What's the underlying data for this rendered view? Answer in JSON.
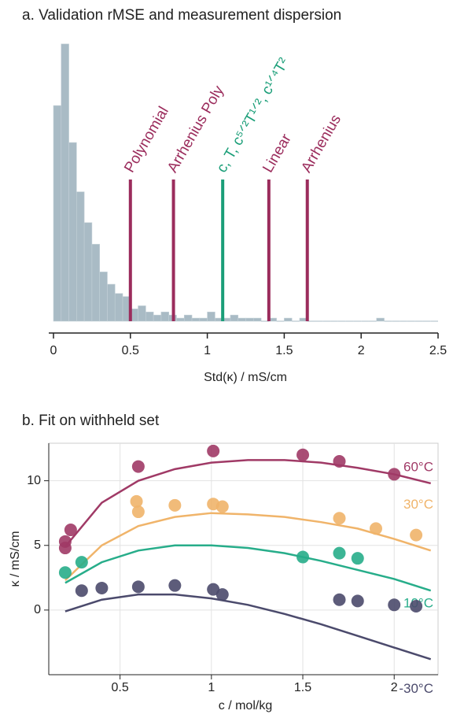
{
  "chart_data": [
    {
      "type": "histogram",
      "title": "a. Validation rMSE and measurement dispersion",
      "x_label": "Std(κ) / mS/cm",
      "bins": [
        0,
        0.05,
        0.1,
        0.15,
        0.2,
        0.25,
        0.3,
        0.35,
        0.4,
        0.45,
        0.5,
        0.55,
        0.6,
        0.65,
        0.7,
        0.75,
        0.8,
        0.85,
        0.9,
        0.95,
        1,
        1.05,
        1.1,
        1.15,
        1.2,
        1.25,
        1.3,
        1.35,
        1.4,
        1.45,
        1.5,
        1.55,
        1.6,
        1.65,
        1.7,
        1.75,
        1.8,
        1.85,
        1.9,
        1.95,
        2,
        2.05,
        2.1,
        2.15,
        2.2,
        2.25,
        2.3,
        2.35,
        2.4,
        2.45,
        2.5
      ],
      "counts": [
        70,
        90,
        58,
        42,
        32,
        25,
        16,
        12,
        9,
        8,
        4,
        5,
        3,
        2,
        3,
        2,
        1,
        2,
        1,
        1,
        3,
        1,
        1,
        2,
        1,
        1,
        1,
        0,
        1,
        0,
        1,
        0,
        1,
        0,
        0,
        0,
        0,
        0,
        0,
        0,
        0,
        0,
        1,
        0,
        0,
        0,
        0,
        0,
        0,
        0
      ],
      "color": "#a9bbc5",
      "xlim": [
        0,
        2.5
      ],
      "xticks": [
        0,
        0.5,
        1,
        1.5,
        2,
        2.5
      ],
      "ylim": [
        0,
        92
      ],
      "markers": [
        {
          "label": "Polynomial",
          "value": 0.5,
          "color": "#9b2c5c"
        },
        {
          "label": "Arrhenius Poly",
          "value": 0.78,
          "color": "#9b2c5c"
        },
        {
          "label": "c, T, c⁵ᐟ²T¹ᐟ², c¹ᐟ⁴T²",
          "value": 1.1,
          "color": "#1a9e78"
        },
        {
          "label": "Linear",
          "value": 1.4,
          "color": "#9b2c5c"
        },
        {
          "label": "Arrhenius",
          "value": 1.65,
          "color": "#9b2c5c"
        }
      ]
    },
    {
      "type": "scatter",
      "title": "b. Fit on withheld set",
      "x_label": "c / mol/kg",
      "y_label": "κ / mS/cm",
      "xlim": [
        0.11,
        2.24
      ],
      "xticks": [
        0.5,
        1,
        1.5,
        2
      ],
      "ylim": [
        -5,
        12.9
      ],
      "yticks": [
        0,
        5,
        10
      ],
      "grid": true,
      "fit_x": [
        0.2,
        0.4,
        0.6,
        0.8,
        1.0,
        1.2,
        1.4,
        1.6,
        1.8,
        2.0,
        2.2
      ],
      "series": [
        {
          "name": "60°C",
          "color": "#a03a66",
          "x": [
            0.2,
            0.2,
            0.23,
            0.6,
            1.01,
            1.5,
            1.7,
            2.0
          ],
          "values": [
            4.8,
            5.3,
            6.2,
            11.1,
            12.3,
            12.0,
            11.5,
            10.5
          ],
          "fit_values": [
            4.9,
            8.3,
            10.0,
            10.9,
            11.4,
            11.6,
            11.6,
            11.4,
            11.0,
            10.5,
            9.8
          ]
        },
        {
          "name": "30°C",
          "color": "#f0b46a",
          "x": [
            0.59,
            0.6,
            0.8,
            1.01,
            1.06,
            1.7,
            1.9,
            2.12
          ],
          "values": [
            8.4,
            7.6,
            8.1,
            8.2,
            8.0,
            7.1,
            6.3,
            5.8
          ],
          "fit_values": [
            2.3,
            5.0,
            6.5,
            7.2,
            7.5,
            7.4,
            7.2,
            6.8,
            6.3,
            5.5,
            4.6
          ]
        },
        {
          "name": "10°C",
          "color": "#27ad8a",
          "x": [
            0.2,
            0.29,
            1.5,
            1.7,
            1.8
          ],
          "values": [
            2.9,
            3.7,
            4.1,
            4.4,
            4.0
          ],
          "fit_values": [
            2.1,
            3.7,
            4.6,
            5.0,
            5.0,
            4.8,
            4.4,
            3.8,
            3.1,
            2.4,
            1.5
          ]
        },
        {
          "name": "-30°C",
          "color": "#4b4a6c",
          "x": [
            0.29,
            0.4,
            0.6,
            0.8,
            1.01,
            1.06,
            1.7,
            1.8,
            2.0,
            2.12
          ],
          "values": [
            1.5,
            1.7,
            1.8,
            1.9,
            1.6,
            1.2,
            0.8,
            0.7,
            0.4,
            0.3
          ],
          "fit_values": [
            -0.1,
            0.8,
            1.2,
            1.2,
            0.9,
            0.4,
            -0.3,
            -1.1,
            -2.0,
            -2.9,
            -3.8
          ]
        }
      ]
    }
  ]
}
